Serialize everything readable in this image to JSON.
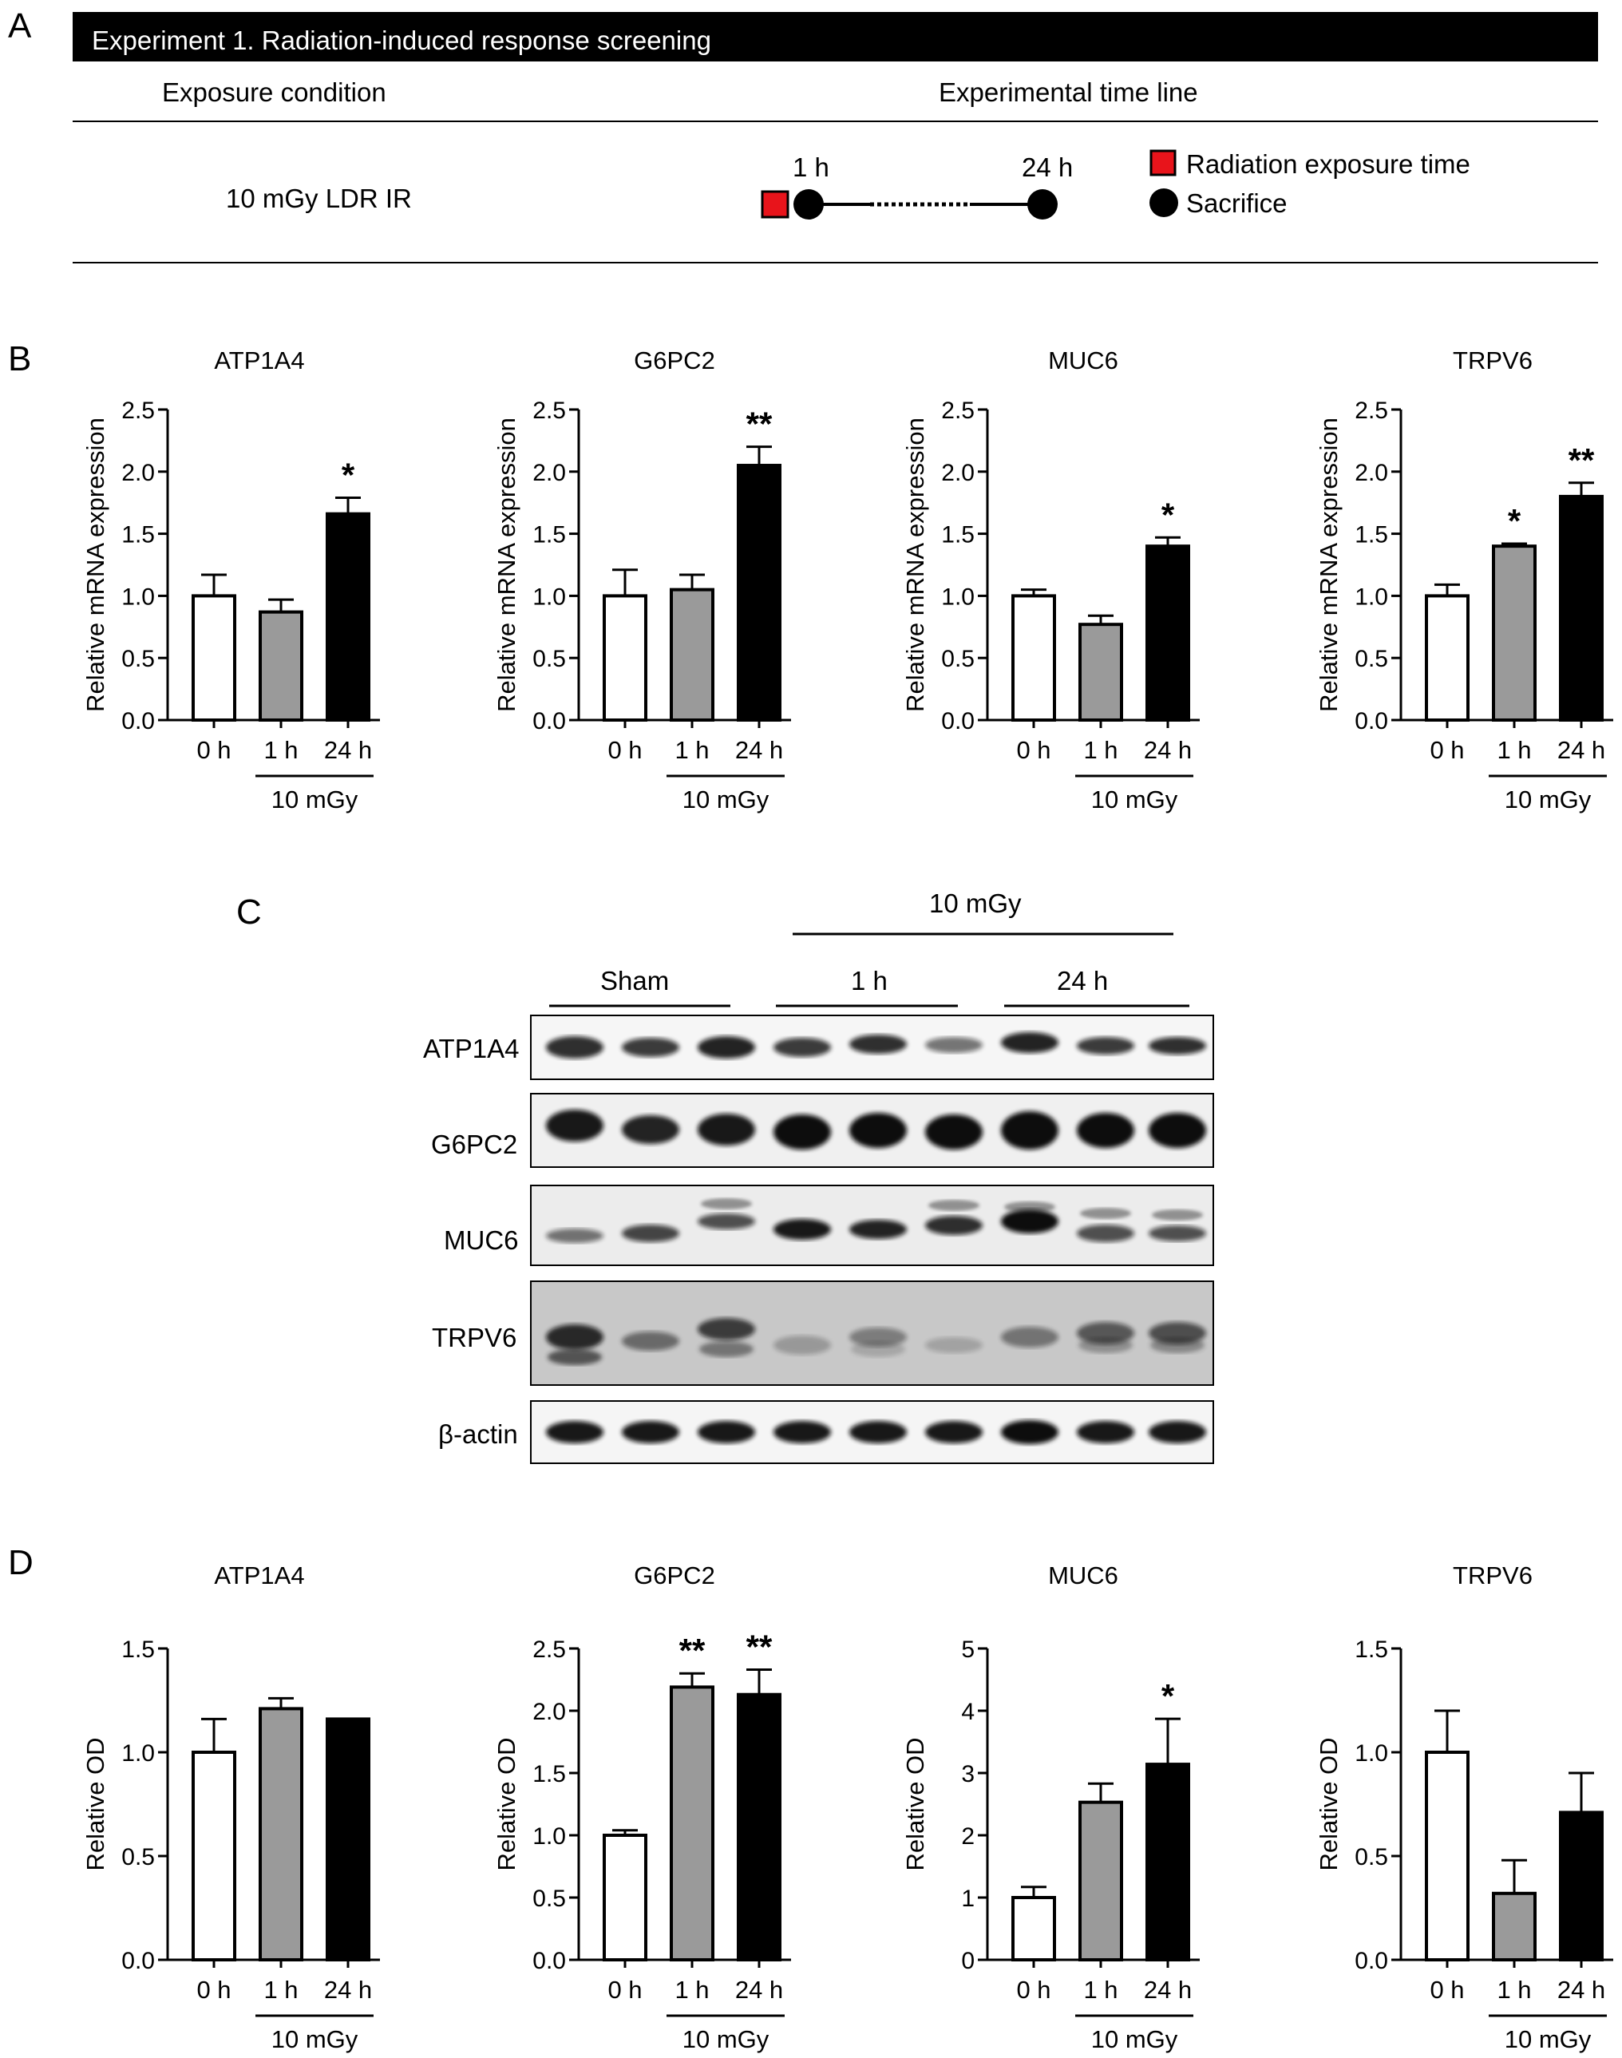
{
  "panel_labels": {
    "A": "A",
    "B": "B",
    "C": "C",
    "D": "D"
  },
  "panel_a": {
    "banner": "Experiment 1. Radiation-induced response screening",
    "col_exposure": "Exposure condition",
    "col_timeline": "Experimental time line",
    "condition": "10 mGy LDR IR",
    "time_1h": "1 h",
    "time_24h": "24 h",
    "legend_radiation": "Radiation exposure time",
    "legend_sacrifice": "Sacrifice",
    "colors": {
      "radiation": "#e8141b",
      "sacrifice": "#000000"
    }
  },
  "panel_c": {
    "treatment": "10 mGy",
    "groups": [
      "Sham",
      "1 h",
      "24 h"
    ],
    "rows": [
      "ATP1A4",
      "G6PC2",
      "MUC6",
      "TRPV6",
      "β-actin"
    ]
  },
  "bar_colors": [
    "#ffffff",
    "#9a9a9a",
    "#000000"
  ],
  "chart_data": [
    {
      "type": "bar",
      "panel": "B",
      "title": "ATP1A4",
      "ylabel": "Relative mRNA expression",
      "categories": [
        "0 h",
        "1 h",
        "24 h"
      ],
      "group_label": "10 mGy",
      "ylim": [
        0,
        2.5
      ],
      "ticks": [
        "0.0",
        "0.5",
        "1.0",
        "1.5",
        "2.0",
        "2.5"
      ],
      "values": [
        1.0,
        0.87,
        1.66
      ],
      "errors": [
        0.17,
        0.1,
        0.13
      ],
      "significance": [
        "",
        "",
        "*"
      ]
    },
    {
      "type": "bar",
      "panel": "B",
      "title": "G6PC2",
      "ylabel": "Relative mRNA expression",
      "categories": [
        "0 h",
        "1 h",
        "24 h"
      ],
      "group_label": "10 mGy",
      "ylim": [
        0,
        2.5
      ],
      "ticks": [
        "0.0",
        "0.5",
        "1.0",
        "1.5",
        "2.0",
        "2.5"
      ],
      "values": [
        1.0,
        1.05,
        2.05
      ],
      "errors": [
        0.21,
        0.12,
        0.15
      ],
      "significance": [
        "",
        "",
        "**"
      ]
    },
    {
      "type": "bar",
      "panel": "B",
      "title": "MUC6",
      "ylabel": "Relative mRNA expression",
      "categories": [
        "0 h",
        "1 h",
        "24 h"
      ],
      "group_label": "10 mGy",
      "ylim": [
        0,
        2.5
      ],
      "ticks": [
        "0.0",
        "0.5",
        "1.0",
        "1.5",
        "2.0",
        "2.5"
      ],
      "values": [
        1.0,
        0.77,
        1.4
      ],
      "errors": [
        0.05,
        0.07,
        0.07
      ],
      "significance": [
        "",
        "",
        "*"
      ]
    },
    {
      "type": "bar",
      "panel": "B",
      "title": "TRPV6",
      "ylabel": "Relative mRNA expression",
      "categories": [
        "0 h",
        "1 h",
        "24 h"
      ],
      "group_label": "10 mGy",
      "ylim": [
        0,
        2.5
      ],
      "ticks": [
        "0.0",
        "0.5",
        "1.0",
        "1.5",
        "2.0",
        "2.5"
      ],
      "values": [
        1.0,
        1.4,
        1.8
      ],
      "errors": [
        0.09,
        0.02,
        0.11
      ],
      "significance": [
        "",
        "*",
        "**"
      ]
    },
    {
      "type": "bar",
      "panel": "D",
      "title": "ATP1A4",
      "ylabel": "Relative OD",
      "categories": [
        "0 h",
        "1 h",
        "24 h"
      ],
      "group_label": "10 mGy",
      "ylim": [
        0,
        1.5
      ],
      "ticks": [
        "0.0",
        "0.5",
        "1.0",
        "1.5"
      ],
      "values": [
        1.0,
        1.21,
        1.16
      ],
      "errors": [
        0.16,
        0.05,
        0
      ],
      "significance": [
        "",
        "",
        ""
      ]
    },
    {
      "type": "bar",
      "panel": "D",
      "title": "G6PC2",
      "ylabel": "Relative OD",
      "categories": [
        "0 h",
        "1 h",
        "24 h"
      ],
      "group_label": "10 mGy",
      "ylim": [
        0,
        2.5
      ],
      "ticks": [
        "0.0",
        "0.5",
        "1.0",
        "1.5",
        "2.0",
        "2.5"
      ],
      "values": [
        1.0,
        2.19,
        2.13
      ],
      "errors": [
        0.04,
        0.11,
        0.2
      ],
      "significance": [
        "",
        "**",
        "**"
      ]
    },
    {
      "type": "bar",
      "panel": "D",
      "title": "MUC6",
      "ylabel": "Relative OD",
      "categories": [
        "0 h",
        "1 h",
        "24 h"
      ],
      "group_label": "10 mGy",
      "ylim": [
        0,
        5
      ],
      "ticks": [
        "0",
        "1",
        "2",
        "3",
        "4",
        "5"
      ],
      "values": [
        1.0,
        2.53,
        3.14
      ],
      "errors": [
        0.17,
        0.3,
        0.73
      ],
      "significance": [
        "",
        "",
        "*"
      ]
    },
    {
      "type": "bar",
      "panel": "D",
      "title": "TRPV6",
      "ylabel": "Relative OD",
      "categories": [
        "0 h",
        "1 h",
        "24 h"
      ],
      "group_label": "10 mGy",
      "ylim": [
        0,
        1.5
      ],
      "ticks": [
        "0.0",
        "0.5",
        "1.0",
        "1.5"
      ],
      "values": [
        1.0,
        0.32,
        0.71
      ],
      "errors": [
        0.2,
        0.16,
        0.19
      ],
      "significance": [
        "",
        "",
        ""
      ]
    }
  ]
}
